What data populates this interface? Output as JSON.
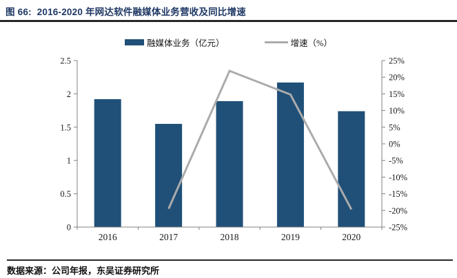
{
  "title": "图 66:  2016-2020 年网达软件融媒体业务营收及同比增速",
  "source": "数据来源：公司年报，东吴证券研究所",
  "colors": {
    "title": "#1F3864",
    "bar": "#205078",
    "line": "#ABABAB",
    "rule": "#262626",
    "axis": "#808080",
    "text": "#1A1A1A"
  },
  "chart_data": {
    "type": "bar",
    "subtype": "bar+line combo",
    "categories": [
      "2016",
      "2017",
      "2018",
      "2019",
      "2020"
    ],
    "series": [
      {
        "name": "融媒体业务（亿元）",
        "type": "bar",
        "axis": "left",
        "values": [
          1.92,
          1.55,
          1.89,
          2.17,
          1.74
        ]
      },
      {
        "name": "增速（%）",
        "type": "line",
        "axis": "right",
        "values": [
          null,
          -19.5,
          21.9,
          14.8,
          -19.7
        ]
      }
    ],
    "left_axis": {
      "min": 0,
      "max": 2.5,
      "ticks": [
        "2.5",
        "2",
        "1.5",
        "1",
        "0.5",
        "0"
      ]
    },
    "right_axis": {
      "min": -25,
      "max": 25,
      "ticks": [
        "25%",
        "20%",
        "15%",
        "10%",
        "5%",
        "0%",
        "-5%",
        "-10%",
        "-15%",
        "-20%",
        "-25%"
      ]
    },
    "legend_position": "top",
    "grid": false
  }
}
